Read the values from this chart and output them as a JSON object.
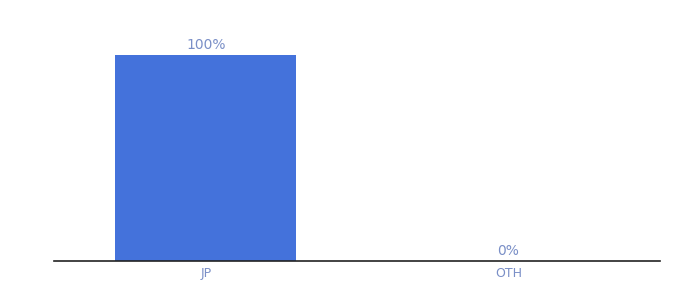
{
  "categories": [
    "JP",
    "OTH"
  ],
  "values": [
    100,
    0
  ],
  "bar_color": "#4472db",
  "label_color": "#7a8fc7",
  "tick_color": "#7a8fc7",
  "spine_color": "#222222",
  "ylim": [
    0,
    115
  ],
  "xlim": [
    -0.5,
    1.5
  ],
  "background_color": "#ffffff",
  "label_fontsize": 10,
  "tick_fontsize": 9,
  "bar_width": 0.6,
  "figsize": [
    6.8,
    3.0
  ],
  "dpi": 100
}
